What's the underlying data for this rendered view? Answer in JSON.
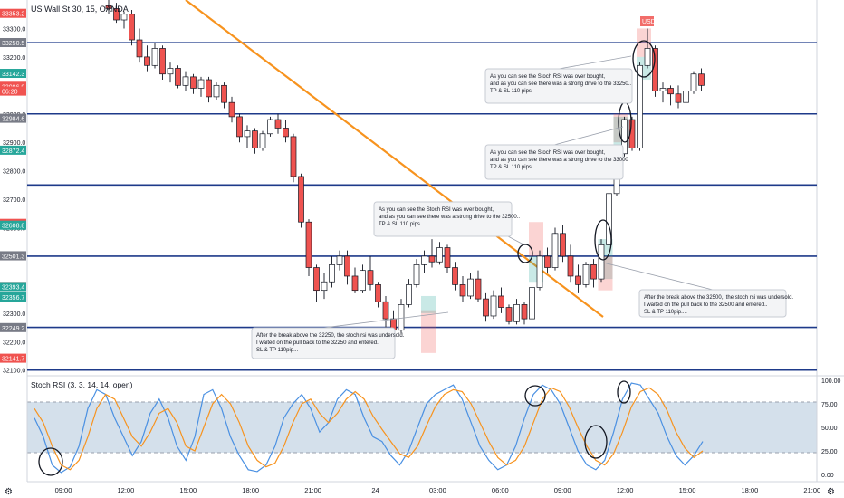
{
  "symbol_title": "US Wall St 30, 15, OANDA",
  "indicator_title": "Stoch RSI (3, 3, 14, 14, open)",
  "price_ticks": [
    "33300.0",
    "33200.0",
    "33100.0",
    "33000.0",
    "32900.0",
    "32800.0",
    "32700.0",
    "32600.0",
    "32500.0",
    "32400.0",
    "32300.0",
    "32200.0",
    "32100.0"
  ],
  "price_badges": [
    {
      "text": "33353.2",
      "color": "#f05350"
    },
    {
      "text": "33250.5",
      "color": "#787b86"
    },
    {
      "text": "33142.3",
      "color": "#26a69a"
    },
    {
      "text": "33096.9",
      "color": "#f05350"
    },
    {
      "text": "06:20",
      "color": "#f05350"
    },
    {
      "text": "32984.6",
      "color": "#787b86"
    },
    {
      "text": "32872.4",
      "color": "#26a69a"
    },
    {
      "text": "32615.3",
      "color": "#f05350"
    },
    {
      "text": "32608.8",
      "color": "#26a69a"
    },
    {
      "text": "32501.6",
      "color": "#787b86"
    },
    {
      "text": "32501.3",
      "color": "#787b86"
    },
    {
      "text": "32393.8",
      "color": "#f05350"
    },
    {
      "text": "32393.4",
      "color": "#26a69a"
    },
    {
      "text": "32356.7",
      "color": "#26a69a"
    },
    {
      "text": "32249.2",
      "color": "#787b86"
    },
    {
      "text": "32141.7",
      "color": "#f05350"
    }
  ],
  "stoch_ticks": [
    "100.00",
    "75.00",
    "50.00",
    "25.00",
    "0.00"
  ],
  "time_ticks": [
    "09:00",
    "12:00",
    "15:00",
    "18:00",
    "21:00",
    "24",
    "03:00",
    "06:00",
    "09:00",
    "12:00",
    "15:00",
    "18:00",
    "21:00"
  ],
  "usd_label": "USD",
  "colors": {
    "up": "#26a69a",
    "down": "#ef5350",
    "hline": "#1e3a8a",
    "trend": "#f7931e",
    "stoch_k": "#4a90e2",
    "stoch_d": "#f7931e",
    "band": "#c5d5e4"
  },
  "annotations": [
    "As you can see the Stoch RSI was over bought,\nand as you can see there was a strong drive to the 33250..\nTP & SL 110 pips",
    "As you can see the Stoch RSI was over bought,\nand as you can see there was a strong drive to the 33000\nTP & SL 110 pips",
    "As you can see the Stoch RSI was over bought,\nand as you can see there was a strong drive to the 32500..\nTP & SL 110 pips",
    "After the break above the 32500,, the stoch rsi was undersold.\nI waited on the pull back to the 32500 and entered..\nSL & TP 110pip....",
    "After the break above the 32250, the stoch rsi was undersold.\nI waited on the pull back to the 32250 and entered..\nSL & TP 110pip..."
  ],
  "chart_data": {
    "type": "candlestick",
    "title": "US Wall St 30, 15, OANDA",
    "ylim": [
      32080,
      33400
    ],
    "horizontal_levels": [
      33250,
      33000,
      32750,
      32500,
      32250,
      32100
    ],
    "candles": [
      {
        "o": 33380,
        "h": 33400,
        "l": 33350,
        "c": 33370
      },
      {
        "o": 33370,
        "h": 33390,
        "l": 33320,
        "c": 33330
      },
      {
        "o": 33330,
        "h": 33360,
        "l": 33300,
        "c": 33350
      },
      {
        "o": 33350,
        "h": 33365,
        "l": 33240,
        "c": 33260
      },
      {
        "o": 33260,
        "h": 33300,
        "l": 33180,
        "c": 33200
      },
      {
        "o": 33200,
        "h": 33240,
        "l": 33150,
        "c": 33170
      },
      {
        "o": 33170,
        "h": 33250,
        "l": 33160,
        "c": 33230
      },
      {
        "o": 33230,
        "h": 33240,
        "l": 33120,
        "c": 33140
      },
      {
        "o": 33140,
        "h": 33180,
        "l": 33110,
        "c": 33160
      },
      {
        "o": 33160,
        "h": 33170,
        "l": 33090,
        "c": 33100
      },
      {
        "o": 33100,
        "h": 33150,
        "l": 33080,
        "c": 33130
      },
      {
        "o": 33130,
        "h": 33140,
        "l": 33070,
        "c": 33090
      },
      {
        "o": 33090,
        "h": 33130,
        "l": 33060,
        "c": 33120
      },
      {
        "o": 33120,
        "h": 33130,
        "l": 33040,
        "c": 33060
      },
      {
        "o": 33060,
        "h": 33110,
        "l": 33050,
        "c": 33100
      },
      {
        "o": 33100,
        "h": 33110,
        "l": 33020,
        "c": 33040
      },
      {
        "o": 33040,
        "h": 33060,
        "l": 32970,
        "c": 32990
      },
      {
        "o": 32990,
        "h": 33000,
        "l": 32900,
        "c": 32920
      },
      {
        "o": 32920,
        "h": 32960,
        "l": 32880,
        "c": 32940
      },
      {
        "o": 32940,
        "h": 32950,
        "l": 32860,
        "c": 32880
      },
      {
        "o": 32880,
        "h": 32940,
        "l": 32870,
        "c": 32930
      },
      {
        "o": 32930,
        "h": 32990,
        "l": 32920,
        "c": 32980
      },
      {
        "o": 32980,
        "h": 33000,
        "l": 32930,
        "c": 32950
      },
      {
        "o": 32950,
        "h": 32980,
        "l": 32900,
        "c": 32920
      },
      {
        "o": 32920,
        "h": 32930,
        "l": 32760,
        "c": 32780
      },
      {
        "o": 32780,
        "h": 32790,
        "l": 32600,
        "c": 32620
      },
      {
        "o": 32620,
        "h": 32630,
        "l": 32430,
        "c": 32460
      },
      {
        "o": 32460,
        "h": 32470,
        "l": 32340,
        "c": 32380
      },
      {
        "o": 32380,
        "h": 32440,
        "l": 32350,
        "c": 32410
      },
      {
        "o": 32410,
        "h": 32500,
        "l": 32390,
        "c": 32470
      },
      {
        "o": 32470,
        "h": 32520,
        "l": 32450,
        "c": 32500
      },
      {
        "o": 32500,
        "h": 32520,
        "l": 32400,
        "c": 32430
      },
      {
        "o": 32430,
        "h": 32460,
        "l": 32370,
        "c": 32380
      },
      {
        "o": 32380,
        "h": 32470,
        "l": 32370,
        "c": 32450
      },
      {
        "o": 32450,
        "h": 32500,
        "l": 32380,
        "c": 32400
      },
      {
        "o": 32400,
        "h": 32410,
        "l": 32320,
        "c": 32340
      },
      {
        "o": 32340,
        "h": 32360,
        "l": 32250,
        "c": 32280
      },
      {
        "o": 32280,
        "h": 32310,
        "l": 32230,
        "c": 32240
      },
      {
        "o": 32240,
        "h": 32350,
        "l": 32230,
        "c": 32330
      },
      {
        "o": 32330,
        "h": 32420,
        "l": 32320,
        "c": 32400
      },
      {
        "o": 32400,
        "h": 32490,
        "l": 32390,
        "c": 32470
      },
      {
        "o": 32470,
        "h": 32520,
        "l": 32440,
        "c": 32500
      },
      {
        "o": 32500,
        "h": 32560,
        "l": 32460,
        "c": 32480
      },
      {
        "o": 32480,
        "h": 32550,
        "l": 32470,
        "c": 32530
      },
      {
        "o": 32530,
        "h": 32540,
        "l": 32440,
        "c": 32460
      },
      {
        "o": 32460,
        "h": 32480,
        "l": 32380,
        "c": 32400
      },
      {
        "o": 32400,
        "h": 32430,
        "l": 32340,
        "c": 32360
      },
      {
        "o": 32360,
        "h": 32440,
        "l": 32350,
        "c": 32420
      },
      {
        "o": 32420,
        "h": 32450,
        "l": 32340,
        "c": 32350
      },
      {
        "o": 32350,
        "h": 32370,
        "l": 32270,
        "c": 32290
      },
      {
        "o": 32290,
        "h": 32380,
        "l": 32280,
        "c": 32360
      },
      {
        "o": 32360,
        "h": 32390,
        "l": 32300,
        "c": 32320
      },
      {
        "o": 32320,
        "h": 32330,
        "l": 32260,
        "c": 32270
      },
      {
        "o": 32270,
        "h": 32350,
        "l": 32260,
        "c": 32330
      },
      {
        "o": 32330,
        "h": 32340,
        "l": 32260,
        "c": 32280
      },
      {
        "o": 32280,
        "h": 32400,
        "l": 32270,
        "c": 32390
      },
      {
        "o": 32390,
        "h": 32520,
        "l": 32380,
        "c": 32500
      },
      {
        "o": 32500,
        "h": 32530,
        "l": 32440,
        "c": 32460
      },
      {
        "o": 32460,
        "h": 32600,
        "l": 32450,
        "c": 32580
      },
      {
        "o": 32580,
        "h": 32610,
        "l": 32480,
        "c": 32500
      },
      {
        "o": 32500,
        "h": 32540,
        "l": 32410,
        "c": 32430
      },
      {
        "o": 32430,
        "h": 32470,
        "l": 32370,
        "c": 32400
      },
      {
        "o": 32400,
        "h": 32480,
        "l": 32390,
        "c": 32470
      },
      {
        "o": 32470,
        "h": 32490,
        "l": 32390,
        "c": 32420
      },
      {
        "o": 32420,
        "h": 32560,
        "l": 32410,
        "c": 32540
      },
      {
        "o": 32540,
        "h": 32730,
        "l": 32530,
        "c": 32720
      },
      {
        "o": 32720,
        "h": 32880,
        "l": 32710,
        "c": 32860
      },
      {
        "o": 32860,
        "h": 32990,
        "l": 32850,
        "c": 32980
      },
      {
        "o": 32980,
        "h": 32990,
        "l": 32870,
        "c": 32880
      },
      {
        "o": 32880,
        "h": 33180,
        "l": 32870,
        "c": 33170
      },
      {
        "o": 33170,
        "h": 33300,
        "l": 33160,
        "c": 33230
      },
      {
        "o": 33230,
        "h": 33240,
        "l": 33060,
        "c": 33080
      },
      {
        "o": 33080,
        "h": 33110,
        "l": 33040,
        "c": 33090
      },
      {
        "o": 33090,
        "h": 33100,
        "l": 33030,
        "c": 33070
      },
      {
        "o": 33070,
        "h": 33100,
        "l": 33020,
        "c": 33040
      },
      {
        "o": 33040,
        "h": 33090,
        "l": 33030,
        "c": 33080
      },
      {
        "o": 33080,
        "h": 33150,
        "l": 33070,
        "c": 33140
      },
      {
        "o": 33140,
        "h": 33160,
        "l": 33080,
        "c": 33100
      }
    ],
    "indicator": {
      "name": "Stoch RSI (3, 3, 14, 14, open)",
      "ylim": [
        0,
        100
      ],
      "bands": [
        80,
        20
      ],
      "k": [
        60,
        40,
        10,
        2,
        8,
        30,
        70,
        90,
        85,
        60,
        40,
        20,
        35,
        65,
        80,
        60,
        30,
        15,
        40,
        85,
        90,
        70,
        40,
        20,
        5,
        3,
        10,
        30,
        60,
        75,
        85,
        70,
        45,
        55,
        80,
        90,
        85,
        60,
        40,
        35,
        20,
        10,
        25,
        50,
        75,
        85,
        90,
        95,
        80,
        55,
        30,
        15,
        5,
        10,
        30,
        60,
        85,
        95,
        90,
        75,
        50,
        25,
        10,
        5,
        15,
        45,
        80,
        97,
        95,
        80,
        65,
        40,
        20,
        10,
        20,
        35
      ],
      "d": [
        70,
        55,
        30,
        10,
        5,
        15,
        40,
        70,
        85,
        80,
        60,
        40,
        30,
        45,
        65,
        70,
        55,
        30,
        25,
        50,
        75,
        85,
        75,
        55,
        30,
        15,
        8,
        12,
        30,
        55,
        75,
        80,
        65,
        55,
        65,
        80,
        88,
        80,
        62,
        48,
        35,
        22,
        18,
        30,
        52,
        72,
        85,
        90,
        88,
        75,
        55,
        35,
        18,
        10,
        15,
        30,
        55,
        80,
        92,
        88,
        72,
        50,
        30,
        15,
        10,
        22,
        45,
        72,
        88,
        92,
        85,
        68,
        45,
        28,
        18,
        25
      ]
    }
  }
}
